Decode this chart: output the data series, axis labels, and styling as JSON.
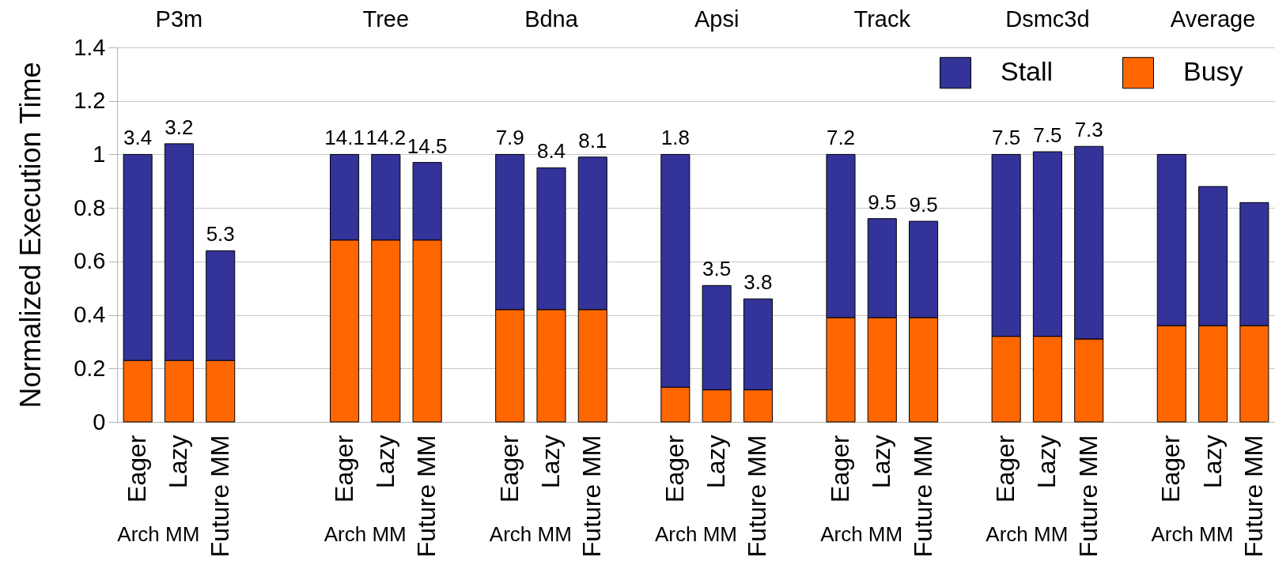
{
  "chart_data": {
    "type": "bar",
    "stacked": true,
    "ylabel": "Normalized Execution Time",
    "categories": [
      "Eager",
      "Lazy",
      "Future MM",
      null,
      null,
      "Eager",
      "Lazy",
      "Future MM",
      null,
      "Eager",
      "Lazy",
      "Future MM",
      null,
      "Eager",
      "Lazy",
      "Future MM",
      null,
      "Eager",
      "Lazy",
      "Future MM",
      null,
      "Eager",
      "Lazy",
      "Future MM",
      null,
      "Eager",
      "Lazy",
      "Future MM"
    ],
    "series": [
      {
        "name": "Busy",
        "color": "#ff6600",
        "values": [
          0.23,
          0.23,
          0.23,
          null,
          null,
          0.68,
          0.68,
          0.68,
          null,
          0.42,
          0.42,
          0.42,
          null,
          0.13,
          0.12,
          0.12,
          null,
          0.39,
          0.39,
          0.39,
          null,
          0.32,
          0.32,
          0.31,
          null,
          0.36,
          0.36,
          0.36
        ]
      },
      {
        "name": "Stall",
        "color": "#333399",
        "values": [
          0.77,
          0.81,
          0.41,
          null,
          null,
          0.32,
          0.32,
          0.29,
          null,
          0.58,
          0.53,
          0.57,
          null,
          0.87,
          0.39,
          0.34,
          null,
          0.61,
          0.37,
          0.36,
          null,
          0.68,
          0.69,
          0.72,
          null,
          0.64,
          0.52,
          0.46
        ]
      }
    ],
    "ylim": [
      0,
      1.4
    ],
    "yticks": [
      0,
      0.2,
      0.4,
      0.6,
      0.8,
      1,
      1.2,
      1.4
    ],
    "grid": "y",
    "legend": "top right",
    "annotations": [
      "P3m",
      "Tree",
      "Bdna",
      "Apsi",
      "Track",
      "Dsmc3d",
      "Average",
      "3.4",
      "3.2",
      "5.3",
      "14.1",
      "14.2",
      "14.5",
      "7.9",
      "8.4",
      "8.1",
      "1.8",
      "3.5",
      "3.8",
      "7.2",
      "9.5",
      "9.5",
      "7.5",
      "7.5",
      "7.3",
      "Arch MM",
      "Arch MM",
      "Arch MM",
      "Arch MM",
      "Arch MM",
      "Arch MM",
      "Arch MM"
    ]
  }
}
